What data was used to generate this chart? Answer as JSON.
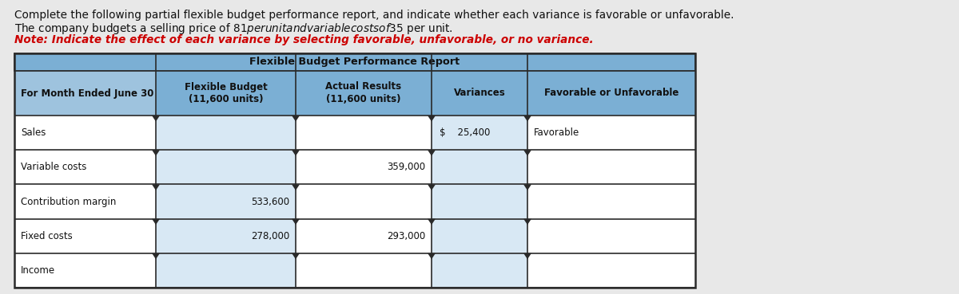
{
  "intro_lines": [
    "Complete the following partial flexible budget performance report, and indicate whether each variance is favorable or unfavorable.",
    "The company budgets a selling price of $81 per unit and variable costs of $35 per unit.",
    "Note: Indicate the effect of each variance by selecting favorable, unfavorable, or no variance."
  ],
  "note_line_index": 2,
  "table_title": "Flexible Budget Performance Report",
  "col_headers": [
    "For Month Ended June 30",
    "Flexible Budget\n(11,600 units)",
    "Actual Results\n(11,600 units)",
    "Variances",
    "Favorable or Unfavorable"
  ],
  "rows": [
    {
      "label": "Sales",
      "flex_budget": "",
      "actual": "",
      "variance": "$    25,400",
      "fav_unfav": "Favorable"
    },
    {
      "label": "Variable costs",
      "flex_budget": "",
      "actual": "359,000",
      "variance": "",
      "fav_unfav": ""
    },
    {
      "label": "Contribution margin",
      "flex_budget": "533,600",
      "actual": "",
      "variance": "",
      "fav_unfav": ""
    },
    {
      "label": "Fixed costs",
      "flex_budget": "278,000",
      "actual": "293,000",
      "variance": "",
      "fav_unfav": ""
    },
    {
      "label": "Income",
      "flex_budget": "",
      "actual": "",
      "variance": "",
      "fav_unfav": ""
    }
  ],
  "bg_color": "#e8e8e8",
  "table_header_blue": "#7bafd4",
  "table_subheader_blue": "#9ec3de",
  "cell_white": "#ffffff",
  "cell_light": "#d8e8f4",
  "border_dark": "#2a2a2a",
  "border_medium": "#555555",
  "note_color": "#cc0000",
  "text_color": "#111111",
  "font_size_intro": 9.8,
  "font_size_table_header": 8.5,
  "font_size_table_data": 8.5,
  "font_size_title": 9.2
}
